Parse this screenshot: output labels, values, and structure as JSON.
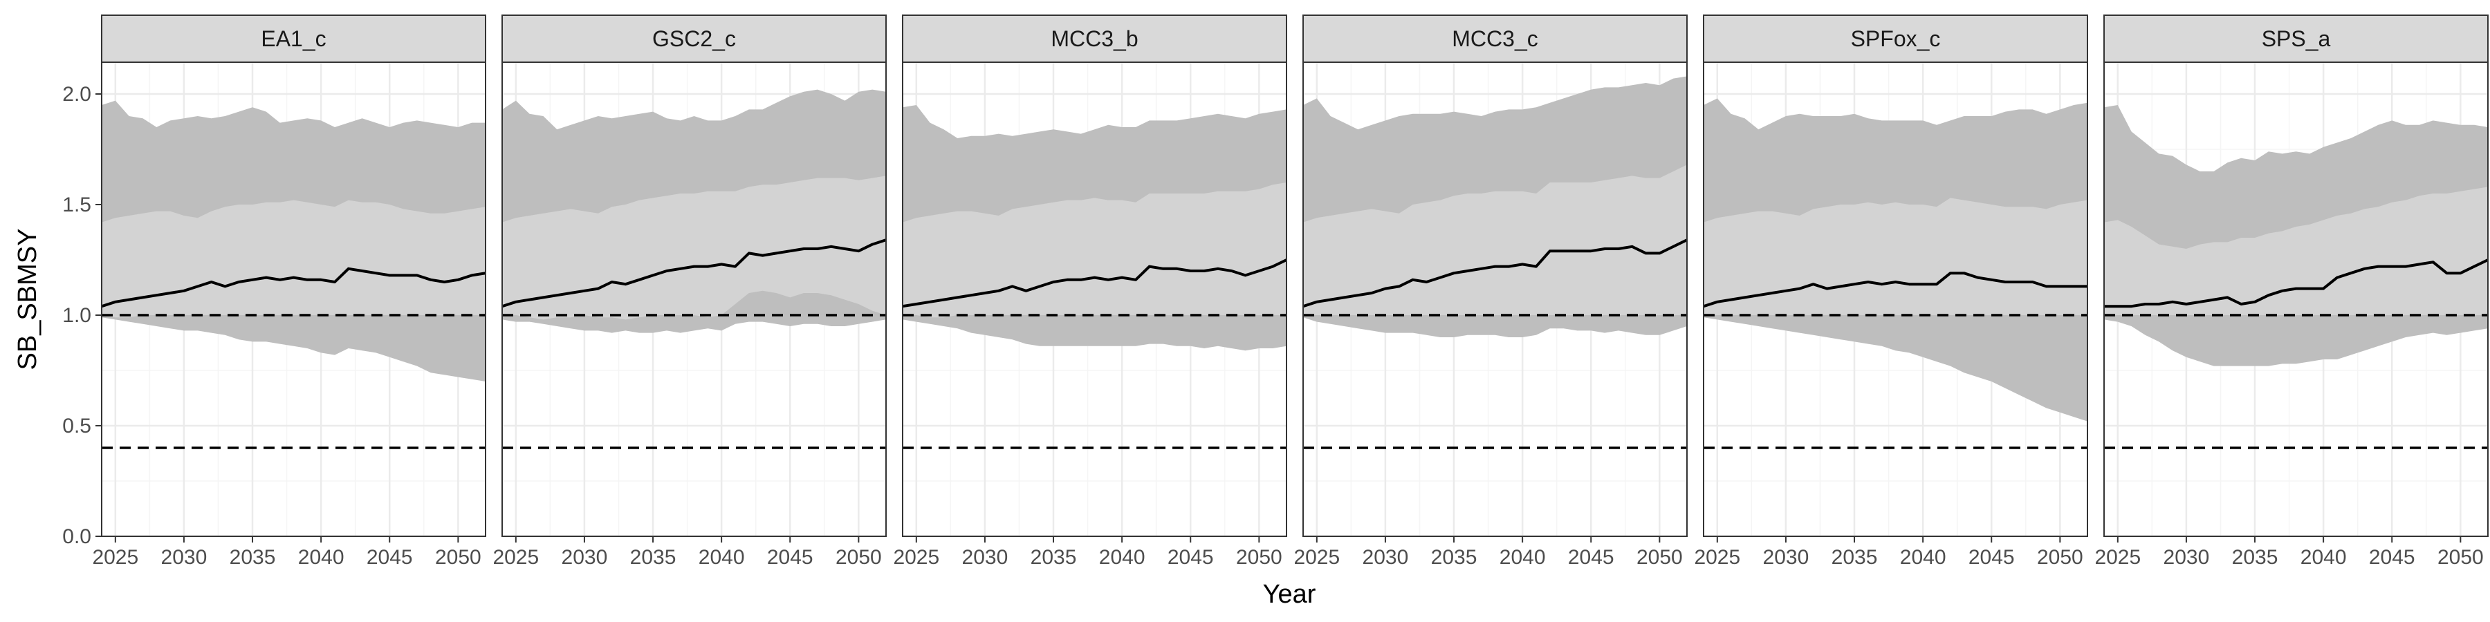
{
  "chart_data": {
    "type": "area",
    "title": "",
    "xlabel": "Year",
    "ylabel": "SB_SBMSY",
    "xlim": [
      2024,
      2052
    ],
    "ylim": [
      0,
      2.1
    ],
    "x_ticks": [
      2025,
      2030,
      2035,
      2040,
      2045,
      2050
    ],
    "x_tick_labels": [
      "2025",
      "2030",
      "2035",
      "2040",
      "2045",
      "2050"
    ],
    "y_ticks": [
      0,
      0.5,
      1,
      1.5,
      2
    ],
    "y_tick_labels": [
      "0.0",
      "0.5",
      "1.0",
      "1.5",
      "2.0"
    ],
    "grid": true,
    "reference_lines": [
      1.0,
      0.4
    ],
    "x": [
      2024,
      2025,
      2026,
      2027,
      2028,
      2029,
      2030,
      2031,
      2032,
      2033,
      2034,
      2035,
      2036,
      2037,
      2038,
      2039,
      2040,
      2041,
      2042,
      2043,
      2044,
      2045,
      2046,
      2047,
      2048,
      2049,
      2050,
      2051,
      2052
    ],
    "colors": {
      "outer_band": "#bebebe",
      "inner_band": "#d3d3d3",
      "median": "#000000",
      "strip": "#d9d9d9",
      "grid_major": "#ebebeb",
      "grid_minor": "#f5f5f5",
      "frame": "#333333"
    },
    "panels": [
      {
        "name": "EA1_c",
        "median": [
          1.04,
          1.06,
          1.07,
          1.08,
          1.09,
          1.1,
          1.11,
          1.13,
          1.15,
          1.13,
          1.15,
          1.16,
          1.17,
          1.16,
          1.17,
          1.16,
          1.16,
          1.15,
          1.21,
          1.2,
          1.19,
          1.18,
          1.18,
          1.18,
          1.16,
          1.15,
          1.16,
          1.18,
          1.19
        ],
        "inner_low": [
          1.0,
          0.99,
          0.99,
          1.0,
          1.0,
          1.0,
          1.0,
          1.0,
          1.0,
          1.0,
          1.0,
          1.0,
          1.0,
          1.0,
          1.0,
          1.0,
          1.0,
          1.0,
          1.0,
          1.0,
          1.0,
          1.0,
          1.0,
          1.0,
          1.0,
          1.0,
          1.0,
          1.0,
          1.0
        ],
        "inner_high": [
          1.42,
          1.44,
          1.45,
          1.46,
          1.47,
          1.47,
          1.45,
          1.44,
          1.47,
          1.49,
          1.5,
          1.5,
          1.51,
          1.51,
          1.52,
          1.51,
          1.5,
          1.49,
          1.52,
          1.51,
          1.51,
          1.5,
          1.48,
          1.47,
          1.46,
          1.46,
          1.47,
          1.48,
          1.49
        ],
        "outer_low": [
          0.99,
          0.98,
          0.97,
          0.96,
          0.95,
          0.94,
          0.93,
          0.93,
          0.92,
          0.91,
          0.89,
          0.88,
          0.88,
          0.87,
          0.86,
          0.85,
          0.83,
          0.82,
          0.85,
          0.84,
          0.83,
          0.81,
          0.79,
          0.77,
          0.74,
          0.73,
          0.72,
          0.71,
          0.7
        ],
        "outer_high": [
          1.95,
          1.97,
          1.9,
          1.89,
          1.85,
          1.88,
          1.89,
          1.9,
          1.89,
          1.9,
          1.92,
          1.94,
          1.92,
          1.87,
          1.88,
          1.89,
          1.88,
          1.85,
          1.87,
          1.89,
          1.87,
          1.85,
          1.87,
          1.88,
          1.87,
          1.86,
          1.85,
          1.87,
          1.87
        ]
      },
      {
        "name": "GSC2_c",
        "median": [
          1.04,
          1.06,
          1.07,
          1.08,
          1.09,
          1.1,
          1.11,
          1.12,
          1.15,
          1.14,
          1.16,
          1.18,
          1.2,
          1.21,
          1.22,
          1.22,
          1.23,
          1.22,
          1.28,
          1.27,
          1.28,
          1.29,
          1.3,
          1.3,
          1.31,
          1.3,
          1.29,
          1.32,
          1.34
        ],
        "inner_low": [
          1.0,
          1.0,
          0.99,
          0.98,
          0.99,
          0.99,
          1.0,
          0.99,
          0.99,
          0.98,
          0.99,
          1.0,
          1.0,
          1.0,
          1.0,
          0.99,
          1.0,
          1.05,
          1.1,
          1.11,
          1.1,
          1.08,
          1.1,
          1.1,
          1.09,
          1.07,
          1.05,
          1.02,
          1.0
        ],
        "inner_high": [
          1.42,
          1.44,
          1.45,
          1.46,
          1.47,
          1.48,
          1.47,
          1.46,
          1.49,
          1.5,
          1.52,
          1.53,
          1.54,
          1.55,
          1.55,
          1.56,
          1.56,
          1.56,
          1.58,
          1.59,
          1.59,
          1.6,
          1.61,
          1.62,
          1.62,
          1.62,
          1.61,
          1.62,
          1.63
        ],
        "outer_low": [
          0.98,
          0.97,
          0.97,
          0.96,
          0.95,
          0.94,
          0.93,
          0.93,
          0.92,
          0.93,
          0.92,
          0.92,
          0.93,
          0.92,
          0.93,
          0.94,
          0.93,
          0.96,
          0.97,
          0.97,
          0.96,
          0.95,
          0.96,
          0.96,
          0.95,
          0.95,
          0.96,
          0.97,
          0.98
        ],
        "outer_high": [
          1.93,
          1.97,
          1.91,
          1.9,
          1.84,
          1.86,
          1.88,
          1.9,
          1.89,
          1.9,
          1.91,
          1.92,
          1.89,
          1.88,
          1.9,
          1.88,
          1.88,
          1.9,
          1.93,
          1.93,
          1.96,
          1.99,
          2.01,
          2.02,
          2.0,
          1.97,
          2.01,
          2.02,
          2.01
        ]
      },
      {
        "name": "MCC3_b",
        "median": [
          1.04,
          1.05,
          1.06,
          1.07,
          1.08,
          1.09,
          1.1,
          1.11,
          1.13,
          1.11,
          1.13,
          1.15,
          1.16,
          1.16,
          1.17,
          1.16,
          1.17,
          1.16,
          1.22,
          1.21,
          1.21,
          1.2,
          1.2,
          1.21,
          1.2,
          1.18,
          1.2,
          1.22,
          1.25
        ],
        "inner_low": [
          1.0,
          1.0,
          0.99,
          0.99,
          1.0,
          1.0,
          1.0,
          1.0,
          1.0,
          1.0,
          1.0,
          1.0,
          1.0,
          1.0,
          1.0,
          1.0,
          1.0,
          1.0,
          1.0,
          1.0,
          1.0,
          1.0,
          1.0,
          1.0,
          1.0,
          1.0,
          1.0,
          1.0,
          1.0
        ],
        "inner_high": [
          1.42,
          1.44,
          1.45,
          1.46,
          1.47,
          1.47,
          1.46,
          1.45,
          1.48,
          1.49,
          1.5,
          1.51,
          1.52,
          1.52,
          1.53,
          1.52,
          1.52,
          1.51,
          1.55,
          1.55,
          1.55,
          1.55,
          1.55,
          1.56,
          1.56,
          1.56,
          1.57,
          1.59,
          1.6
        ],
        "outer_low": [
          0.98,
          0.97,
          0.96,
          0.95,
          0.94,
          0.92,
          0.91,
          0.9,
          0.89,
          0.87,
          0.86,
          0.86,
          0.86,
          0.86,
          0.86,
          0.86,
          0.86,
          0.86,
          0.87,
          0.87,
          0.86,
          0.86,
          0.85,
          0.86,
          0.85,
          0.84,
          0.85,
          0.85,
          0.86
        ],
        "outer_high": [
          1.94,
          1.95,
          1.87,
          1.84,
          1.8,
          1.81,
          1.81,
          1.82,
          1.81,
          1.82,
          1.83,
          1.84,
          1.83,
          1.82,
          1.84,
          1.86,
          1.85,
          1.85,
          1.88,
          1.88,
          1.88,
          1.89,
          1.9,
          1.91,
          1.9,
          1.89,
          1.91,
          1.92,
          1.93
        ]
      },
      {
        "name": "MCC3_c",
        "median": [
          1.04,
          1.06,
          1.07,
          1.08,
          1.09,
          1.1,
          1.12,
          1.13,
          1.16,
          1.15,
          1.17,
          1.19,
          1.2,
          1.21,
          1.22,
          1.22,
          1.23,
          1.22,
          1.29,
          1.29,
          1.29,
          1.29,
          1.3,
          1.3,
          1.31,
          1.28,
          1.28,
          1.31,
          1.34
        ],
        "inner_low": [
          1.0,
          1.0,
          1.0,
          1.0,
          1.0,
          1.0,
          1.0,
          1.0,
          1.0,
          1.0,
          1.0,
          1.0,
          1.0,
          1.0,
          1.0,
          1.0,
          1.0,
          1.0,
          1.0,
          1.0,
          1.0,
          1.0,
          1.0,
          1.0,
          1.0,
          1.0,
          1.0,
          1.0,
          1.0
        ],
        "inner_high": [
          1.42,
          1.44,
          1.45,
          1.46,
          1.47,
          1.48,
          1.47,
          1.46,
          1.5,
          1.51,
          1.52,
          1.54,
          1.55,
          1.55,
          1.56,
          1.56,
          1.56,
          1.55,
          1.6,
          1.6,
          1.6,
          1.6,
          1.61,
          1.62,
          1.63,
          1.62,
          1.62,
          1.65,
          1.68
        ],
        "outer_low": [
          0.99,
          0.97,
          0.96,
          0.95,
          0.94,
          0.93,
          0.92,
          0.92,
          0.92,
          0.91,
          0.9,
          0.9,
          0.91,
          0.91,
          0.91,
          0.9,
          0.9,
          0.91,
          0.94,
          0.94,
          0.93,
          0.93,
          0.92,
          0.93,
          0.92,
          0.91,
          0.91,
          0.93,
          0.95
        ],
        "outer_high": [
          1.95,
          1.98,
          1.9,
          1.87,
          1.84,
          1.86,
          1.88,
          1.9,
          1.91,
          1.91,
          1.91,
          1.92,
          1.91,
          1.9,
          1.92,
          1.93,
          1.93,
          1.94,
          1.96,
          1.98,
          2.0,
          2.02,
          2.03,
          2.03,
          2.04,
          2.05,
          2.04,
          2.07,
          2.08
        ]
      },
      {
        "name": "SPFox_c",
        "median": [
          1.04,
          1.06,
          1.07,
          1.08,
          1.09,
          1.1,
          1.11,
          1.12,
          1.14,
          1.12,
          1.13,
          1.14,
          1.15,
          1.14,
          1.15,
          1.14,
          1.14,
          1.14,
          1.19,
          1.19,
          1.17,
          1.16,
          1.15,
          1.15,
          1.15,
          1.13,
          1.13,
          1.13,
          1.13
        ],
        "inner_low": [
          1.0,
          1.0,
          1.0,
          1.0,
          1.0,
          1.0,
          1.0,
          1.0,
          1.0,
          1.0,
          1.0,
          1.0,
          1.0,
          1.0,
          1.0,
          1.0,
          1.0,
          1.0,
          1.0,
          1.0,
          1.0,
          1.0,
          1.0,
          1.0,
          1.0,
          1.0,
          1.0,
          1.0,
          1.0
        ],
        "inner_high": [
          1.42,
          1.44,
          1.45,
          1.46,
          1.47,
          1.47,
          1.46,
          1.45,
          1.48,
          1.49,
          1.5,
          1.5,
          1.51,
          1.5,
          1.51,
          1.5,
          1.5,
          1.49,
          1.53,
          1.52,
          1.51,
          1.5,
          1.49,
          1.49,
          1.49,
          1.48,
          1.5,
          1.51,
          1.52
        ],
        "outer_low": [
          0.99,
          0.98,
          0.97,
          0.96,
          0.95,
          0.94,
          0.93,
          0.92,
          0.91,
          0.9,
          0.89,
          0.88,
          0.87,
          0.86,
          0.84,
          0.83,
          0.81,
          0.79,
          0.77,
          0.74,
          0.72,
          0.7,
          0.67,
          0.64,
          0.61,
          0.58,
          0.56,
          0.54,
          0.52
        ],
        "outer_high": [
          1.95,
          1.98,
          1.91,
          1.89,
          1.84,
          1.87,
          1.9,
          1.91,
          1.9,
          1.9,
          1.9,
          1.91,
          1.89,
          1.88,
          1.88,
          1.88,
          1.88,
          1.86,
          1.88,
          1.9,
          1.9,
          1.9,
          1.92,
          1.93,
          1.93,
          1.91,
          1.93,
          1.95,
          1.96
        ]
      },
      {
        "name": "SPS_a",
        "median": [
          1.04,
          1.04,
          1.04,
          1.05,
          1.05,
          1.06,
          1.05,
          1.06,
          1.07,
          1.08,
          1.05,
          1.06,
          1.09,
          1.11,
          1.12,
          1.12,
          1.12,
          1.17,
          1.19,
          1.21,
          1.22,
          1.22,
          1.22,
          1.23,
          1.24,
          1.19,
          1.19,
          1.22,
          1.25
        ],
        "inner_low": [
          1.0,
          1.0,
          1.0,
          1.0,
          1.0,
          1.0,
          1.0,
          1.0,
          1.0,
          1.0,
          1.0,
          1.0,
          1.0,
          1.0,
          1.0,
          1.0,
          1.0,
          1.0,
          1.0,
          1.0,
          1.0,
          1.0,
          1.0,
          1.0,
          1.0,
          1.0,
          1.0,
          1.0,
          1.0
        ],
        "inner_high": [
          1.42,
          1.43,
          1.4,
          1.36,
          1.32,
          1.31,
          1.3,
          1.32,
          1.33,
          1.33,
          1.35,
          1.35,
          1.37,
          1.38,
          1.4,
          1.41,
          1.43,
          1.45,
          1.46,
          1.48,
          1.49,
          1.51,
          1.52,
          1.54,
          1.55,
          1.55,
          1.56,
          1.57,
          1.58
        ],
        "outer_low": [
          0.98,
          0.97,
          0.95,
          0.91,
          0.88,
          0.84,
          0.81,
          0.79,
          0.77,
          0.77,
          0.77,
          0.77,
          0.77,
          0.78,
          0.78,
          0.79,
          0.8,
          0.8,
          0.82,
          0.84,
          0.86,
          0.88,
          0.9,
          0.91,
          0.92,
          0.91,
          0.92,
          0.93,
          0.94
        ],
        "outer_high": [
          1.94,
          1.95,
          1.83,
          1.78,
          1.73,
          1.72,
          1.68,
          1.65,
          1.65,
          1.69,
          1.71,
          1.7,
          1.74,
          1.73,
          1.74,
          1.73,
          1.76,
          1.78,
          1.8,
          1.83,
          1.86,
          1.88,
          1.86,
          1.86,
          1.88,
          1.87,
          1.86,
          1.86,
          1.85
        ]
      }
    ]
  }
}
